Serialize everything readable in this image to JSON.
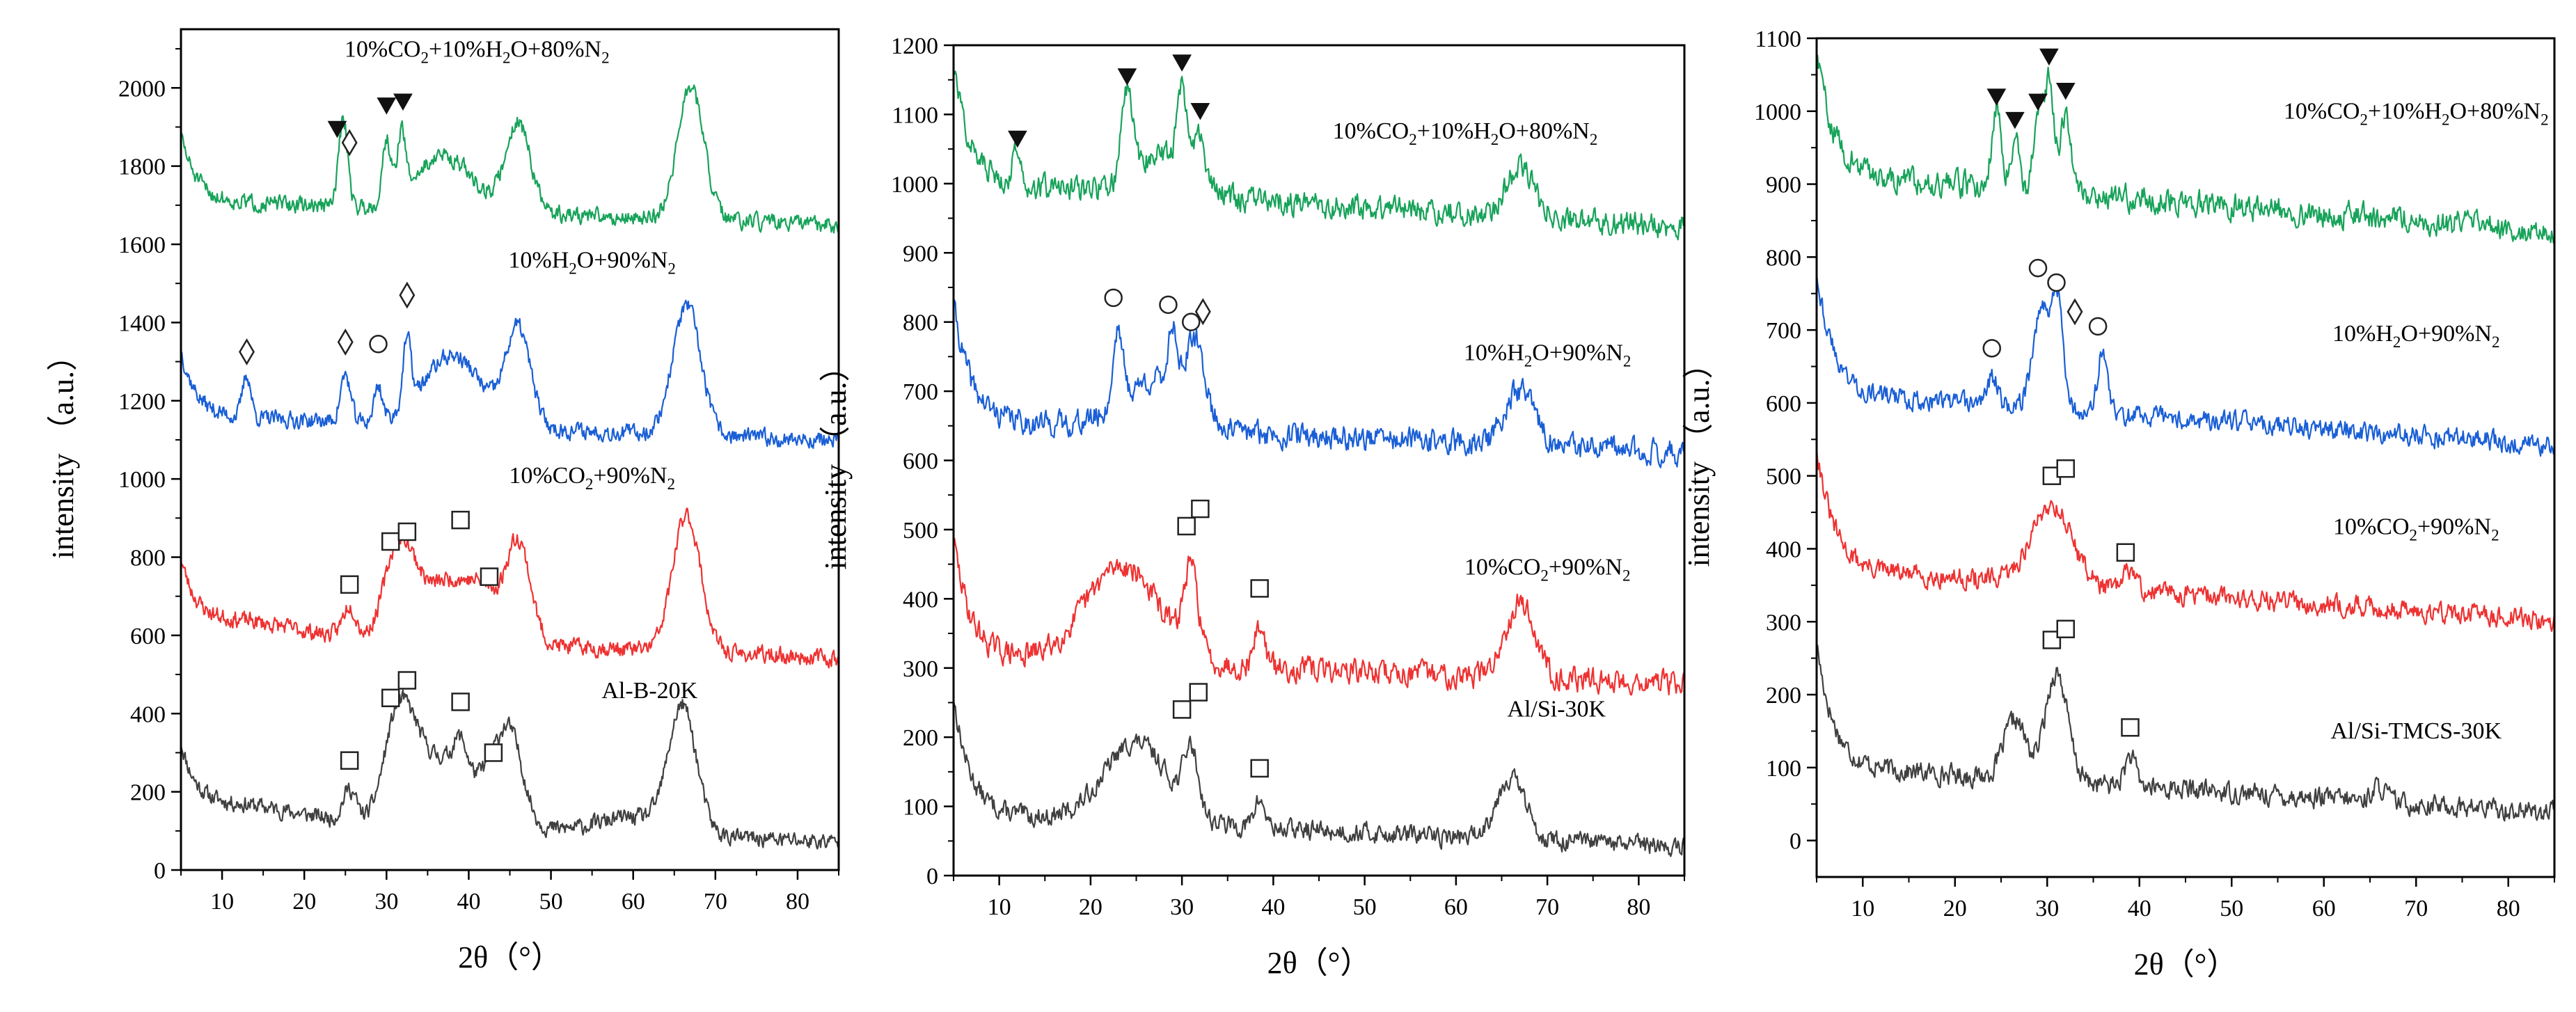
{
  "chart_data": [
    {
      "type": "line",
      "panel": "left",
      "xlabel": "2θ（°）",
      "ylabel": "intensity （a.u.）",
      "xlim": [
        5,
        85
      ],
      "ylim": [
        0,
        2150
      ],
      "xticks": [
        10,
        20,
        30,
        40,
        50,
        60,
        70,
        80
      ],
      "yticks": [
        0,
        200,
        400,
        600,
        800,
        1000,
        1200,
        1400,
        1600,
        1800,
        2000
      ],
      "series": [
        {
          "name": "Al-B-20K",
          "color": "#404040",
          "label_at": [
            62,
            440
          ],
          "base": 130,
          "drift": 0.9,
          "noise": 18,
          "seed": 11,
          "peaks": [
            [
              12,
              6,
              30
            ],
            [
              25.5,
              0.8,
              80
            ],
            [
              31,
              1.5,
              200
            ],
            [
              33,
              1.5,
              120
            ],
            [
              37,
              3.5,
              170
            ],
            [
              39,
              0.8,
              80
            ],
            [
              42.5,
              1.5,
              60
            ],
            [
              45,
              1.6,
              230
            ],
            [
              60,
              4,
              40
            ],
            [
              66,
              1.7,
              320
            ]
          ],
          "markers": [
            {
              "type": "square",
              "x": 25.5,
              "y": 280
            },
            {
              "type": "square",
              "x": 30.5,
              "y": 440
            },
            {
              "type": "square",
              "x": 32.5,
              "y": 485
            },
            {
              "type": "square",
              "x": 39,
              "y": 430
            },
            {
              "type": "square",
              "x": 43,
              "y": 300
            }
          ]
        },
        {
          "name": "10%CO2+90%N2",
          "color": "#ee3232",
          "label_at": [
            55,
            990
          ],
          "base": 600,
          "drift": 0.9,
          "noise": 18,
          "seed": 23,
          "peaks": [
            [
              12,
              6,
              30
            ],
            [
              25.5,
              0.8,
              80
            ],
            [
              31,
              1.5,
              180
            ],
            [
              33,
              1.5,
              100
            ],
            [
              38,
              3.5,
              160
            ],
            [
              42,
              1.5,
              60
            ],
            [
              46,
              1.5,
              260
            ],
            [
              66.5,
              1.7,
              350
            ]
          ],
          "markers": [
            {
              "type": "square",
              "x": 25.5,
              "y": 730
            },
            {
              "type": "square",
              "x": 30.5,
              "y": 840
            },
            {
              "type": "square",
              "x": 32.5,
              "y": 865
            },
            {
              "type": "square",
              "x": 39,
              "y": 895
            },
            {
              "type": "square",
              "x": 42.5,
              "y": 750
            }
          ]
        },
        {
          "name": "10%H2O+90%N2",
          "color": "#1a5fd6",
          "label_at": [
            55,
            1540
          ],
          "base": 1150,
          "drift": 0.8,
          "noise": 18,
          "seed": 37,
          "peaks": [
            [
              13,
              0.5,
              110
            ],
            [
              25,
              0.6,
              120
            ],
            [
              29,
              0.5,
              90
            ],
            [
              32.5,
              0.5,
              170
            ],
            [
              38,
              3.5,
              180
            ],
            [
              46,
              1.5,
              250
            ],
            [
              66.5,
              1.7,
              330
            ]
          ],
          "markers": [
            {
              "type": "diamond",
              "x": 13,
              "y": 1325
            },
            {
              "type": "diamond",
              "x": 25,
              "y": 1350
            },
            {
              "type": "circle",
              "x": 29,
              "y": 1345
            },
            {
              "type": "diamond",
              "x": 32.5,
              "y": 1470
            }
          ]
        },
        {
          "name": "10%CO2+10%H2O+80%N2",
          "color": "#18a35a",
          "label_at": [
            41,
            2080
          ],
          "base": 1700,
          "drift": 0.8,
          "noise": 18,
          "seed": 51,
          "peaks": [
            [
              24.5,
              0.5,
              130
            ],
            [
              25,
              0.5,
              120
            ],
            [
              30,
              0.5,
              160
            ],
            [
              31.8,
              0.5,
              160
            ],
            [
              37,
              3.5,
              140
            ],
            [
              46,
              1.5,
              230
            ],
            [
              67,
              1.6,
              340
            ]
          ],
          "markers": [
            {
              "type": "triangle",
              "x": 24,
              "y": 1895
            },
            {
              "type": "diamond",
              "x": 25.5,
              "y": 1860
            },
            {
              "type": "triangle",
              "x": 30,
              "y": 1955
            },
            {
              "type": "triangle",
              "x": 32,
              "y": 1965
            }
          ]
        }
      ]
    },
    {
      "type": "line",
      "panel": "middle",
      "xlabel": "2θ（°）",
      "ylabel": "intensity （a.u.）",
      "xlim": [
        5,
        85
      ],
      "ylim": [
        0,
        1200
      ],
      "xticks": [
        10,
        20,
        30,
        40,
        50,
        60,
        70,
        80
      ],
      "yticks": [
        0,
        100,
        200,
        300,
        400,
        500,
        600,
        700,
        800,
        900,
        1000,
        1100,
        1200
      ],
      "series": [
        {
          "name": "Al/Si-30K",
          "color": "#404040",
          "label_at": [
            71,
            230
          ],
          "base": 80,
          "drift": 0.6,
          "noise": 12,
          "seed": 13,
          "peaks": [
            [
              25,
              3.5,
              115
            ],
            [
              31,
              0.8,
              90
            ],
            [
              38.5,
              0.6,
              40
            ],
            [
              66,
              1.6,
              90
            ]
          ],
          "markers": [
            {
              "type": "square",
              "x": 30,
              "y": 240
            },
            {
              "type": "square",
              "x": 31.8,
              "y": 265
            },
            {
              "type": "square",
              "x": 38.5,
              "y": 155
            }
          ]
        },
        {
          "name": "10%CO2+90%N2",
          "color": "#ee3232",
          "label_at": [
            70,
            435
          ],
          "base": 310,
          "drift": 0.5,
          "noise": 15,
          "seed": 29,
          "peaks": [
            [
              23.5,
              4,
              140
            ],
            [
              31,
              0.8,
              120
            ],
            [
              38.5,
              0.6,
              60
            ],
            [
              67,
              1.6,
              110
            ]
          ],
          "markers": [
            {
              "type": "square",
              "x": 30.5,
              "y": 505
            },
            {
              "type": "square",
              "x": 32,
              "y": 530
            },
            {
              "type": "square",
              "x": 38.5,
              "y": 415
            }
          ]
        },
        {
          "name": "10%H2O+90%N2",
          "color": "#1a5fd6",
          "label_at": [
            70,
            745
          ],
          "base": 650,
          "drift": 0.6,
          "noise": 15,
          "seed": 41,
          "peaks": [
            [
              23,
              0.5,
              110
            ],
            [
              27,
              3.5,
              70
            ],
            [
              29,
              0.5,
              90
            ],
            [
              31.5,
              1,
              100
            ],
            [
              67,
              1.6,
              80
            ]
          ],
          "markers": [
            {
              "type": "circle",
              "x": 22.5,
              "y": 835
            },
            {
              "type": "circle",
              "x": 28.5,
              "y": 825
            },
            {
              "type": "circle",
              "x": 31,
              "y": 800
            },
            {
              "type": "diamond",
              "x": 32.3,
              "y": 815
            }
          ]
        },
        {
          "name": "10%CO2+10%H2O+80%N2",
          "color": "#18a35a",
          "label_at": [
            61,
            1065
          ],
          "base": 990,
          "drift": 0.8,
          "noise": 15,
          "seed": 57,
          "peaks": [
            [
              12,
              0.5,
              50
            ],
            [
              24,
              0.6,
              130
            ],
            [
              28,
              3,
              60
            ],
            [
              30,
              0.5,
              120
            ],
            [
              32,
              0.6,
              60
            ],
            [
              67,
              1.5,
              70
            ]
          ],
          "markers": [
            {
              "type": "triangle",
              "x": 12,
              "y": 1065
            },
            {
              "type": "triangle",
              "x": 24,
              "y": 1155
            },
            {
              "type": "triangle",
              "x": 30,
              "y": 1175
            },
            {
              "type": "triangle",
              "x": 32,
              "y": 1105
            }
          ]
        }
      ]
    },
    {
      "type": "line",
      "panel": "right",
      "xlabel": "2θ（°）",
      "ylabel": "intensity （a.u.）",
      "xlim": [
        5,
        85
      ],
      "ylim": [
        -50,
        1100
      ],
      "xticks": [
        10,
        20,
        30,
        40,
        50,
        60,
        70,
        80
      ],
      "yticks": [
        0,
        100,
        200,
        300,
        400,
        500,
        600,
        700,
        800,
        900,
        1000,
        1100
      ],
      "series": [
        {
          "name": "Al/Si-TMCS-30K",
          "color": "#404040",
          "label_at": [
            70,
            140
          ],
          "base": 90,
          "drift": 0.8,
          "noise": 12,
          "seed": 17,
          "peaks": [
            [
              26.5,
              1.2,
              80
            ],
            [
              31,
              1.2,
              150
            ],
            [
              39,
              0.6,
              40
            ],
            [
              66,
              0.8,
              20
            ]
          ],
          "markers": [
            {
              "type": "square",
              "x": 30.5,
              "y": 275
            },
            {
              "type": "square",
              "x": 32,
              "y": 290
            },
            {
              "type": "square",
              "x": 39,
              "y": 155
            }
          ]
        },
        {
          "name": "10%CO2+90%N2",
          "color": "#ee3232",
          "label_at": [
            70,
            420
          ],
          "base": 360,
          "drift": 0.9,
          "noise": 12,
          "seed": 31,
          "peaks": [
            [
              30.5,
              2.2,
              110
            ],
            [
              39,
              0.6,
              30
            ]
          ],
          "markers": [
            {
              "type": "square",
              "x": 30.5,
              "y": 500
            },
            {
              "type": "square",
              "x": 32,
              "y": 510
            },
            {
              "type": "square",
              "x": 38.5,
              "y": 395
            }
          ]
        },
        {
          "name": "10%H2O+90%N2",
          "color": "#1a5fd6",
          "label_at": [
            70,
            685
          ],
          "base": 600,
          "drift": 0.9,
          "noise": 12,
          "seed": 43,
          "peaks": [
            [
              24,
              0.6,
              40
            ],
            [
              29.5,
              1,
              140
            ],
            [
              31.2,
              0.6,
              130
            ],
            [
              36,
              0.5,
              90
            ]
          ],
          "markers": [
            {
              "type": "circle",
              "x": 24,
              "y": 675
            },
            {
              "type": "circle",
              "x": 29,
              "y": 785
            },
            {
              "type": "circle",
              "x": 31,
              "y": 765
            },
            {
              "type": "diamond",
              "x": 33,
              "y": 725
            },
            {
              "type": "circle",
              "x": 35.5,
              "y": 705
            }
          ]
        },
        {
          "name": "10%CO2+10%H2O+80%N2",
          "color": "#18a35a",
          "label_at": [
            70,
            990
          ],
          "base": 900,
          "drift": 1.0,
          "noise": 15,
          "seed": 59,
          "peaks": [
            [
              24.5,
              0.5,
              110
            ],
            [
              26.5,
              0.5,
              70
            ],
            [
              29,
              0.5,
              100
            ],
            [
              30.2,
              0.5,
              150
            ],
            [
              32,
              0.6,
              110
            ]
          ],
          "markers": [
            {
              "type": "triangle",
              "x": 24.5,
              "y": 1020
            },
            {
              "type": "triangle",
              "x": 26.5,
              "y": 988
            },
            {
              "type": "triangle",
              "x": 29,
              "y": 1013
            },
            {
              "type": "triangle",
              "x": 30.2,
              "y": 1075
            },
            {
              "type": "triangle",
              "x": 32,
              "y": 1028
            }
          ]
        }
      ]
    }
  ]
}
